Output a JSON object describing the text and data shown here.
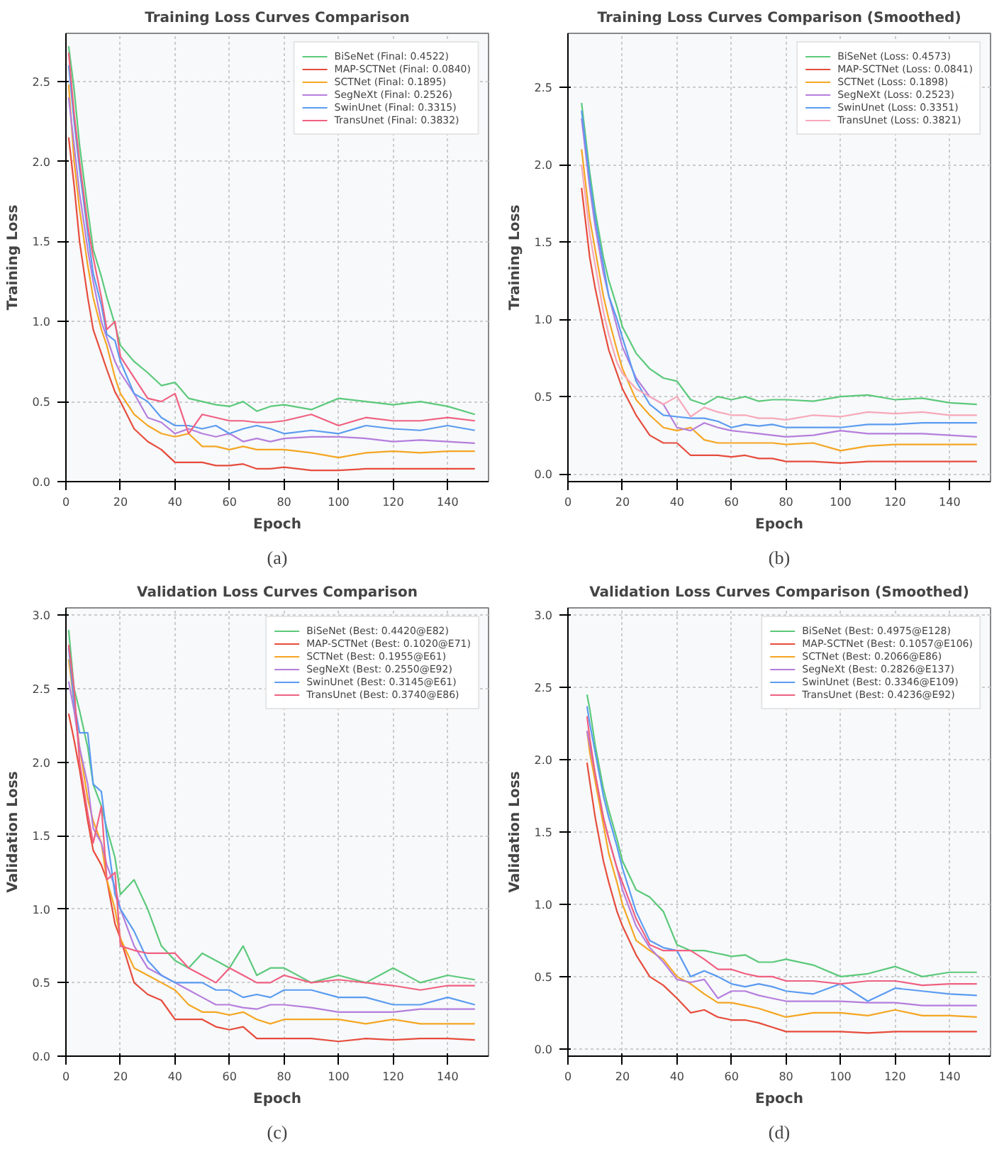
{
  "chart_data": [
    {
      "type": "line",
      "title": "Training Loss Curves Comparison",
      "xlabel": "Epoch",
      "ylabel": "Training Loss",
      "annotations": [
        "(a)"
      ],
      "legend": "top right",
      "grid": true,
      "line_style": "solid",
      "x": [
        1,
        3,
        5,
        8,
        10,
        13,
        15,
        18,
        20,
        25,
        30,
        35,
        40,
        45,
        50,
        55,
        60,
        65,
        70,
        75,
        80,
        90,
        100,
        110,
        120,
        130,
        140,
        150
      ],
      "xlim": [
        0,
        155
      ],
      "xticks": [
        0,
        20,
        40,
        60,
        80,
        100,
        120,
        140
      ],
      "ylim": [
        0,
        2.8
      ],
      "yticks": [
        {
          "value": 0,
          "label": "0.0"
        },
        0.5,
        {
          "value": 1,
          "label": "1.0"
        },
        1.5,
        {
          "value": 2,
          "label": "2.0"
        },
        2.5
      ],
      "series": [
        {
          "name": "BiSeNet (Final: 0.4522)",
          "color": "#5cc97a",
          "values": [
            2.72,
            2.45,
            2.1,
            1.7,
            1.45,
            1.28,
            1.15,
            0.98,
            0.85,
            0.75,
            0.68,
            0.6,
            0.62,
            0.52,
            0.5,
            0.48,
            0.47,
            0.5,
            0.44,
            0.47,
            0.48,
            0.45,
            0.52,
            0.5,
            0.48,
            0.5,
            0.47,
            0.42
          ]
        },
        {
          "name": "MAP-SCTNet (Final: 0.0840)",
          "color": "#e74c3c",
          "values": [
            2.15,
            1.85,
            1.5,
            1.15,
            0.95,
            0.8,
            0.7,
            0.56,
            0.5,
            0.33,
            0.25,
            0.2,
            0.12,
            0.12,
            0.12,
            0.1,
            0.1,
            0.11,
            0.08,
            0.08,
            0.09,
            0.07,
            0.07,
            0.08,
            0.08,
            0.08,
            0.08,
            0.08
          ]
        },
        {
          "name": "SCTNet (Final: 0.1895)",
          "color": "#f5a623",
          "values": [
            2.48,
            2.0,
            1.7,
            1.35,
            1.15,
            0.95,
            0.85,
            0.65,
            0.55,
            0.42,
            0.35,
            0.3,
            0.28,
            0.3,
            0.22,
            0.22,
            0.2,
            0.22,
            0.2,
            0.2,
            0.2,
            0.18,
            0.15,
            0.18,
            0.19,
            0.18,
            0.19,
            0.19
          ]
        },
        {
          "name": "SegNeXt (Final: 0.2526)",
          "color": "#b57edc",
          "values": [
            2.4,
            2.1,
            1.8,
            1.45,
            1.25,
            1.0,
            0.9,
            0.75,
            0.68,
            0.55,
            0.4,
            0.37,
            0.3,
            0.33,
            0.3,
            0.28,
            0.3,
            0.25,
            0.27,
            0.25,
            0.27,
            0.28,
            0.28,
            0.27,
            0.25,
            0.26,
            0.25,
            0.24
          ]
        },
        {
          "name": "SwinUnet (Final: 0.3315)",
          "color": "#5b9bf0",
          "values": [
            2.6,
            2.25,
            1.95,
            1.55,
            1.3,
            1.1,
            0.92,
            0.88,
            0.75,
            0.55,
            0.5,
            0.4,
            0.35,
            0.35,
            0.33,
            0.35,
            0.3,
            0.33,
            0.35,
            0.33,
            0.3,
            0.32,
            0.3,
            0.35,
            0.33,
            0.32,
            0.35,
            0.32
          ]
        },
        {
          "name": "TransUnet (Final: 0.3832)",
          "color": "#f06080",
          "values": [
            2.68,
            2.3,
            2.0,
            1.6,
            1.4,
            1.15,
            0.95,
            1.0,
            0.78,
            0.65,
            0.52,
            0.5,
            0.55,
            0.3,
            0.42,
            0.4,
            0.38,
            0.38,
            0.37,
            0.37,
            0.38,
            0.42,
            0.35,
            0.4,
            0.38,
            0.38,
            0.4,
            0.38
          ]
        }
      ]
    },
    {
      "type": "line",
      "title": "Training Loss Curves Comparison (Smoothed)",
      "xlabel": "Epoch",
      "ylabel": "Training Loss",
      "annotations": [
        "(b)"
      ],
      "legend": "top right",
      "grid": true,
      "line_style": "solid",
      "x": [
        5,
        8,
        10,
        13,
        15,
        18,
        20,
        25,
        30,
        35,
        40,
        45,
        50,
        55,
        60,
        65,
        70,
        75,
        80,
        90,
        100,
        110,
        120,
        130,
        140,
        150
      ],
      "xlim": [
        0,
        155
      ],
      "xticks": [
        0,
        20,
        40,
        60,
        80,
        100,
        120,
        140
      ],
      "ylim": [
        -0.05,
        2.85
      ],
      "yticks": [
        {
          "value": 0,
          "label": "0.0"
        },
        0.5,
        {
          "value": 1,
          "label": "1.0"
        },
        1.5,
        {
          "value": 2,
          "label": "2.0"
        },
        2.5
      ],
      "series": [
        {
          "name": "BiSeNet (Loss: 0.4573)",
          "color": "#5cc97a",
          "values": [
            2.4,
            1.95,
            1.7,
            1.4,
            1.25,
            1.08,
            0.95,
            0.78,
            0.68,
            0.62,
            0.6,
            0.48,
            0.45,
            0.5,
            0.48,
            0.5,
            0.47,
            0.48,
            0.48,
            0.47,
            0.5,
            0.51,
            0.48,
            0.49,
            0.46,
            0.45
          ]
        },
        {
          "name": "MAP-SCTNet (Loss: 0.0841)",
          "color": "#e74c3c",
          "values": [
            1.85,
            1.4,
            1.2,
            0.95,
            0.8,
            0.65,
            0.55,
            0.38,
            0.25,
            0.2,
            0.2,
            0.12,
            0.12,
            0.12,
            0.11,
            0.12,
            0.1,
            0.1,
            0.08,
            0.08,
            0.07,
            0.08,
            0.08,
            0.08,
            0.08,
            0.08
          ]
        },
        {
          "name": "SCTNet (Loss: 0.1898)",
          "color": "#f5a623",
          "values": [
            2.1,
            1.65,
            1.45,
            1.15,
            1.0,
            0.8,
            0.68,
            0.48,
            0.38,
            0.3,
            0.28,
            0.3,
            0.22,
            0.2,
            0.2,
            0.2,
            0.2,
            0.2,
            0.19,
            0.2,
            0.15,
            0.18,
            0.19,
            0.19,
            0.19,
            0.19
          ]
        },
        {
          "name": "SegNeXt (Loss: 0.2523)",
          "color": "#b57edc",
          "values": [
            2.3,
            1.85,
            1.6,
            1.3,
            1.15,
            0.95,
            0.82,
            0.62,
            0.5,
            0.45,
            0.3,
            0.28,
            0.33,
            0.3,
            0.28,
            0.27,
            0.26,
            0.25,
            0.24,
            0.25,
            0.28,
            0.26,
            0.26,
            0.26,
            0.25,
            0.24
          ]
        },
        {
          "name": "SwinUnet (Loss: 0.3351)",
          "color": "#5b9bf0",
          "values": [
            2.35,
            1.9,
            1.65,
            1.35,
            1.15,
            1.0,
            0.88,
            0.6,
            0.45,
            0.38,
            0.37,
            0.36,
            0.36,
            0.34,
            0.3,
            0.32,
            0.31,
            0.32,
            0.3,
            0.3,
            0.3,
            0.32,
            0.32,
            0.33,
            0.33,
            0.33
          ]
        },
        {
          "name": "TransUnet (Loss: 0.3821)",
          "color": "#f7a8b8",
          "values": [
            2.0,
            1.55,
            1.35,
            1.05,
            0.9,
            0.72,
            0.65,
            0.55,
            0.5,
            0.45,
            0.5,
            0.37,
            0.43,
            0.4,
            0.38,
            0.38,
            0.36,
            0.36,
            0.35,
            0.38,
            0.37,
            0.4,
            0.39,
            0.4,
            0.38,
            0.38
          ]
        }
      ]
    },
    {
      "type": "line",
      "title": "Validation Loss Curves Comparison",
      "xlabel": "Epoch",
      "ylabel": "Validation Loss",
      "annotations": [
        "(c)"
      ],
      "legend": "top right",
      "grid": true,
      "line_style": "solid",
      "x": [
        1,
        3,
        5,
        8,
        10,
        13,
        15,
        18,
        20,
        25,
        30,
        35,
        40,
        45,
        50,
        55,
        60,
        65,
        70,
        75,
        80,
        90,
        100,
        110,
        120,
        130,
        140,
        150
      ],
      "xlim": [
        0,
        155
      ],
      "xticks": [
        0,
        20,
        40,
        60,
        80,
        100,
        120,
        140
      ],
      "ylim": [
        0,
        3.05
      ],
      "yticks": [
        {
          "value": 0,
          "label": "0.0"
        },
        0.5,
        {
          "value": 1,
          "label": "1.0"
        },
        1.5,
        {
          "value": 2,
          "label": "2.0"
        },
        2.5,
        {
          "value": 3,
          "label": "3.0"
        }
      ],
      "series": [
        {
          "name": "BiSeNet (Best: 0.4420@E82)",
          "color": "#5cc97a",
          "values": [
            2.9,
            2.5,
            2.35,
            2.1,
            1.85,
            1.7,
            1.55,
            1.35,
            1.1,
            1.2,
            1.0,
            0.75,
            0.65,
            0.6,
            0.7,
            0.65,
            0.6,
            0.75,
            0.55,
            0.6,
            0.6,
            0.5,
            0.55,
            0.5,
            0.6,
            0.5,
            0.55,
            0.52
          ]
        },
        {
          "name": "MAP-SCTNet (Best: 0.1020@E71)",
          "color": "#e74c3c",
          "values": [
            2.33,
            2.15,
            1.95,
            1.6,
            1.4,
            1.3,
            1.2,
            0.9,
            0.8,
            0.5,
            0.42,
            0.38,
            0.25,
            0.25,
            0.25,
            0.2,
            0.18,
            0.2,
            0.12,
            0.12,
            0.12,
            0.12,
            0.1,
            0.12,
            0.11,
            0.12,
            0.12,
            0.11
          ]
        },
        {
          "name": "SCTNet (Best: 0.1955@E61)",
          "color": "#f5a623",
          "values": [
            2.7,
            2.4,
            2.1,
            1.75,
            1.6,
            1.45,
            1.2,
            1.0,
            0.8,
            0.6,
            0.55,
            0.5,
            0.45,
            0.35,
            0.3,
            0.3,
            0.28,
            0.3,
            0.25,
            0.22,
            0.25,
            0.25,
            0.25,
            0.22,
            0.25,
            0.22,
            0.22,
            0.22
          ]
        },
        {
          "name": "SegNeXt (Best: 0.2550@E92)",
          "color": "#b57edc",
          "values": [
            2.55,
            2.35,
            2.1,
            1.85,
            1.55,
            1.45,
            1.3,
            1.15,
            1.0,
            0.75,
            0.6,
            0.55,
            0.5,
            0.45,
            0.4,
            0.35,
            0.35,
            0.33,
            0.32,
            0.35,
            0.35,
            0.33,
            0.3,
            0.3,
            0.3,
            0.32,
            0.32,
            0.32
          ]
        },
        {
          "name": "SwinUnet (Best: 0.3145@E61)",
          "color": "#5b9bf0",
          "values": [
            2.78,
            2.4,
            2.2,
            2.2,
            1.85,
            1.8,
            1.5,
            1.1,
            1.0,
            0.85,
            0.65,
            0.55,
            0.5,
            0.5,
            0.5,
            0.45,
            0.45,
            0.4,
            0.42,
            0.4,
            0.45,
            0.45,
            0.4,
            0.4,
            0.35,
            0.35,
            0.4,
            0.35
          ]
        },
        {
          "name": "TransUnet (Best: 0.3740@E86)",
          "color": "#f06080",
          "values": [
            2.8,
            2.5,
            2.0,
            1.65,
            1.45,
            1.7,
            1.2,
            1.25,
            0.75,
            0.72,
            0.7,
            0.7,
            0.7,
            0.6,
            0.55,
            0.5,
            0.6,
            0.55,
            0.5,
            0.5,
            0.55,
            0.5,
            0.52,
            0.5,
            0.48,
            0.45,
            0.48,
            0.48
          ]
        }
      ]
    },
    {
      "type": "line",
      "title": "Validation Loss Curves Comparison (Smoothed)",
      "xlabel": "Epoch",
      "ylabel": "Validation Loss",
      "annotations": [
        "(d)"
      ],
      "legend": "top right",
      "grid": true,
      "line_style": "solid",
      "x": [
        7,
        8,
        10,
        13,
        15,
        18,
        20,
        25,
        30,
        35,
        40,
        45,
        50,
        55,
        60,
        65,
        70,
        75,
        80,
        90,
        100,
        110,
        120,
        130,
        140,
        150
      ],
      "xlim": [
        0,
        155
      ],
      "xticks": [
        0,
        20,
        40,
        60,
        80,
        100,
        120,
        140
      ],
      "ylim": [
        -0.05,
        3.05
      ],
      "yticks": [
        {
          "value": 0,
          "label": "0.0"
        },
        0.5,
        {
          "value": 1,
          "label": "1.0"
        },
        1.5,
        {
          "value": 2,
          "label": "2.0"
        },
        2.5,
        {
          "value": 3,
          "label": "3.0"
        }
      ],
      "series": [
        {
          "name": "BiSeNet (Best: 0.4975@E128)",
          "color": "#5cc97a",
          "values": [
            2.45,
            2.35,
            2.1,
            1.8,
            1.65,
            1.45,
            1.3,
            1.1,
            1.05,
            0.95,
            0.72,
            0.68,
            0.68,
            0.66,
            0.64,
            0.65,
            0.6,
            0.6,
            0.62,
            0.58,
            0.5,
            0.52,
            0.57,
            0.5,
            0.53,
            0.53
          ]
        },
        {
          "name": "MAP-SCTNet (Best: 0.1057@E106)",
          "color": "#e74c3c",
          "values": [
            1.98,
            1.85,
            1.6,
            1.3,
            1.15,
            0.95,
            0.85,
            0.65,
            0.5,
            0.44,
            0.35,
            0.25,
            0.27,
            0.22,
            0.2,
            0.2,
            0.18,
            0.15,
            0.12,
            0.12,
            0.12,
            0.11,
            0.12,
            0.12,
            0.12,
            0.12
          ]
        },
        {
          "name": "SCTNet (Best: 0.2066@E86)",
          "color": "#f5a623",
          "values": [
            2.2,
            2.05,
            1.85,
            1.55,
            1.35,
            1.15,
            1.0,
            0.75,
            0.68,
            0.62,
            0.5,
            0.45,
            0.38,
            0.32,
            0.32,
            0.3,
            0.28,
            0.25,
            0.22,
            0.25,
            0.25,
            0.23,
            0.27,
            0.23,
            0.23,
            0.22
          ]
        },
        {
          "name": "SegNeXt (Best: 0.2826@E137)",
          "color": "#b57edc",
          "values": [
            2.2,
            2.1,
            1.9,
            1.6,
            1.45,
            1.25,
            1.1,
            0.85,
            0.7,
            0.6,
            0.48,
            0.46,
            0.48,
            0.35,
            0.4,
            0.4,
            0.37,
            0.35,
            0.33,
            0.33,
            0.33,
            0.32,
            0.32,
            0.3,
            0.3,
            0.3
          ]
        },
        {
          "name": "SwinUnet (Best: 0.3346@E109)",
          "color": "#5b9bf0",
          "values": [
            2.37,
            2.25,
            2.05,
            1.75,
            1.6,
            1.4,
            1.25,
            0.95,
            0.75,
            0.7,
            0.68,
            0.5,
            0.54,
            0.5,
            0.45,
            0.43,
            0.45,
            0.43,
            0.4,
            0.38,
            0.45,
            0.33,
            0.42,
            0.4,
            0.38,
            0.37
          ]
        },
        {
          "name": "TransUnet (Best: 0.4236@E92)",
          "color": "#f06080",
          "values": [
            2.3,
            2.15,
            1.9,
            1.6,
            1.45,
            1.25,
            1.15,
            0.9,
            0.72,
            0.68,
            0.68,
            0.68,
            0.62,
            0.55,
            0.55,
            0.52,
            0.5,
            0.5,
            0.47,
            0.47,
            0.45,
            0.47,
            0.47,
            0.44,
            0.45,
            0.45
          ]
        }
      ]
    }
  ]
}
